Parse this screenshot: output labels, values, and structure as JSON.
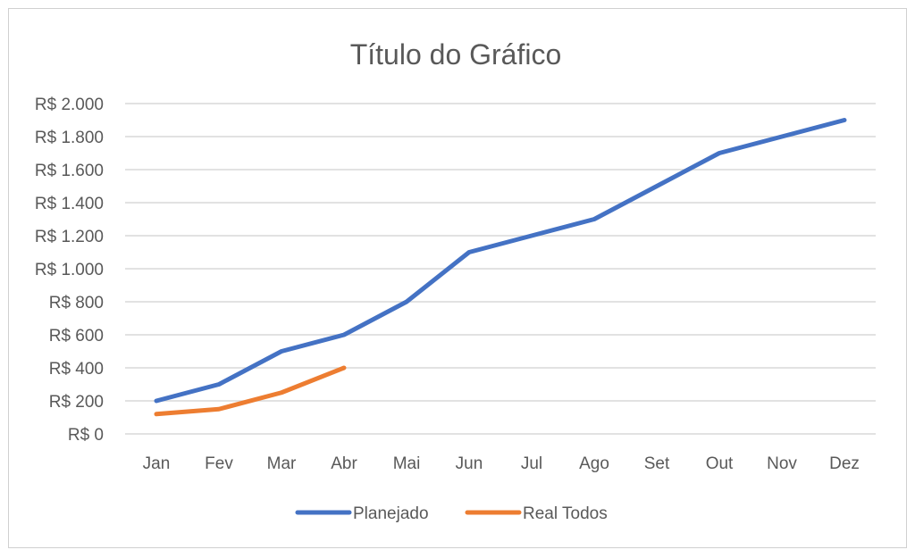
{
  "chart_data": {
    "type": "line",
    "title": "Título do Gráfico",
    "xlabel": "",
    "ylabel": "",
    "categories": [
      "Jan",
      "Fev",
      "Mar",
      "Abr",
      "Mai",
      "Jun",
      "Jul",
      "Ago",
      "Set",
      "Out",
      "Nov",
      "Dez"
    ],
    "ylim": [
      0,
      2000
    ],
    "yticks": [
      0,
      200,
      400,
      600,
      800,
      1000,
      1200,
      1400,
      1600,
      1800,
      2000
    ],
    "ytick_labels": [
      "R$ 0",
      "R$ 200",
      "R$ 400",
      "R$ 600",
      "R$ 800",
      "R$ 1.000",
      "R$ 1.200",
      "R$ 1.400",
      "R$ 1.600",
      "R$ 1.800",
      "R$ 2.000"
    ],
    "grid": true,
    "legend_position": "bottom",
    "series": [
      {
        "name": "Planejado",
        "color": "#4472C4",
        "values": [
          200,
          300,
          500,
          600,
          800,
          1100,
          1200,
          1300,
          1500,
          1700,
          1800,
          1900
        ]
      },
      {
        "name": "Real Todos",
        "color": "#ED7D31",
        "values": [
          120,
          150,
          250,
          400,
          null,
          null,
          null,
          null,
          null,
          null,
          null,
          null
        ]
      }
    ]
  }
}
